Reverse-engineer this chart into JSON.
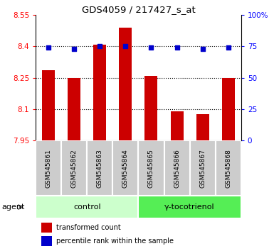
{
  "title": "GDS4059 / 217427_s_at",
  "samples": [
    "GSM545861",
    "GSM545862",
    "GSM545863",
    "GSM545864",
    "GSM545865",
    "GSM545866",
    "GSM545867",
    "GSM545868"
  ],
  "red_values": [
    8.285,
    8.25,
    8.41,
    8.49,
    8.26,
    8.09,
    8.075,
    8.25
  ],
  "blue_values": [
    74,
    73,
    75,
    75,
    74,
    74,
    73,
    74
  ],
  "ylim_left": [
    7.95,
    8.55
  ],
  "ylim_right": [
    0,
    100
  ],
  "yticks_left": [
    7.95,
    8.1,
    8.25,
    8.4,
    8.55
  ],
  "yticks_right": [
    0,
    25,
    50,
    75,
    100
  ],
  "ytick_labels_left": [
    "7.95",
    "8.1",
    "8.25",
    "8.4",
    "8.55"
  ],
  "ytick_labels_right": [
    "0",
    "25",
    "50",
    "75",
    "100%"
  ],
  "grid_ticks": [
    8.1,
    8.25,
    8.4
  ],
  "groups": [
    {
      "label": "control",
      "indices": [
        0,
        1,
        2,
        3
      ],
      "color": "#ccffcc"
    },
    {
      "label": "γ-tocotrienol",
      "indices": [
        4,
        5,
        6,
        7
      ],
      "color": "#55ee55"
    }
  ],
  "agent_label": "agent",
  "bar_color": "#cc0000",
  "dot_color": "#0000cc",
  "grid_color": "#000000",
  "sample_bg_color": "#cccccc",
  "bar_width": 0.5,
  "dot_size": 18,
  "legend": [
    {
      "color": "#cc0000",
      "marker": "s",
      "label": "transformed count"
    },
    {
      "color": "#0000cc",
      "marker": "s",
      "label": "percentile rank within the sample"
    }
  ]
}
